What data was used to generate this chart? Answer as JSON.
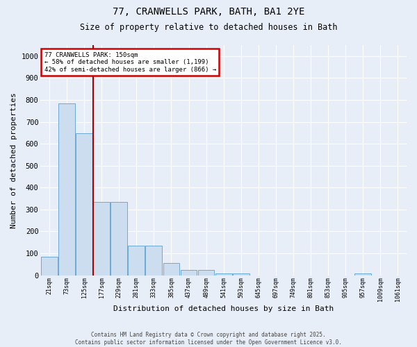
{
  "title1": "77, CRANWELLS PARK, BATH, BA1 2YE",
  "title2": "Size of property relative to detached houses in Bath",
  "xlabel": "Distribution of detached houses by size in Bath",
  "ylabel": "Number of detached properties",
  "annotation_title": "77 CRANWELLS PARK: 150sqm",
  "annotation_line2": "← 58% of detached houses are smaller (1,199)",
  "annotation_line3": "42% of semi-detached houses are larger (866) →",
  "bar_color": "#ccddf0",
  "bar_edge_color": "#6aaad4",
  "bg_color": "#e8eef8",
  "grid_color": "#ffffff",
  "bin_labels": [
    "21sqm",
    "73sqm",
    "125sqm",
    "177sqm",
    "229sqm",
    "281sqm",
    "333sqm",
    "385sqm",
    "437sqm",
    "489sqm",
    "541sqm",
    "593sqm",
    "645sqm",
    "697sqm",
    "749sqm",
    "801sqm",
    "853sqm",
    "905sqm",
    "957sqm",
    "1009sqm",
    "1061sqm"
  ],
  "bar_values": [
    83,
    783,
    648,
    335,
    335,
    136,
    136,
    57,
    23,
    23,
    10,
    10,
    0,
    0,
    0,
    0,
    0,
    0,
    10,
    0,
    0
  ],
  "red_line_x": 2.5,
  "ylim": [
    0,
    1050
  ],
  "yticks": [
    0,
    100,
    200,
    300,
    400,
    500,
    600,
    700,
    800,
    900,
    1000
  ],
  "copyright_text": "Contains HM Land Registry data © Crown copyright and database right 2025.\nContains public sector information licensed under the Open Government Licence v3.0.",
  "annotation_box_facecolor": "#ffffff",
  "annotation_box_edgecolor": "#cc0000"
}
